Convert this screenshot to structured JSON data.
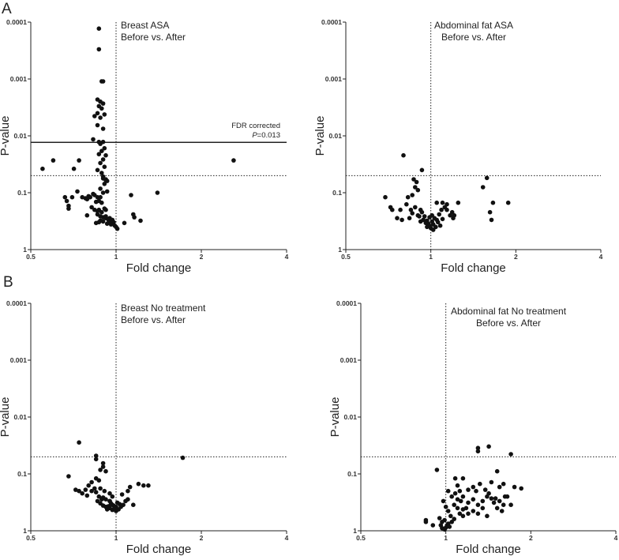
{
  "panel_labels": [
    "A",
    "B"
  ],
  "chart_data": [
    {
      "type": "scatter",
      "panel": "A",
      "annotation": [
        "Breast ASA",
        "Before vs. After"
      ],
      "xlabel": "Fold change",
      "ylabel": "P-value",
      "xscale": "log2",
      "yscale": "log10-inverted",
      "xlim": [
        0.5,
        4
      ],
      "ylim": [
        1,
        0.0001
      ],
      "xticks": [
        0.5,
        1,
        2,
        4
      ],
      "xtick_labels": [
        "0.5",
        "1",
        "2",
        "4"
      ],
      "yticks": [
        0.0001,
        0.001,
        0.01,
        0.1,
        1
      ],
      "ytick_labels": [
        "0.0001",
        "0.001",
        "0.01",
        "0.1",
        "1"
      ],
      "vline": 1,
      "hline_dotted": 0.05,
      "fdr_line": {
        "p": 0.013,
        "label_1": "FDR corrected",
        "label_p": "P",
        "label_2": "=0.013"
      },
      "points": [
        [
          0.87,
          0.00013
        ],
        [
          0.87,
          0.0003
        ],
        [
          0.89,
          0.0011
        ],
        [
          0.9,
          0.0011
        ],
        [
          0.86,
          0.0023
        ],
        [
          0.88,
          0.0025
        ],
        [
          0.9,
          0.0027
        ],
        [
          0.87,
          0.003
        ],
        [
          0.89,
          0.0033
        ],
        [
          0.86,
          0.004
        ],
        [
          0.91,
          0.0042
        ],
        [
          0.84,
          0.0045
        ],
        [
          0.88,
          0.0048
        ],
        [
          0.86,
          0.0065
        ],
        [
          0.9,
          0.0075
        ],
        [
          0.83,
          0.0115
        ],
        [
          0.87,
          0.0128
        ],
        [
          0.9,
          0.0128
        ],
        [
          0.88,
          0.0138
        ],
        [
          0.89,
          0.0185
        ],
        [
          0.91,
          0.0165
        ],
        [
          0.92,
          0.022
        ],
        [
          0.87,
          0.021
        ],
        [
          0.9,
          0.026
        ],
        [
          0.88,
          0.03
        ],
        [
          0.91,
          0.035
        ],
        [
          0.86,
          0.04
        ],
        [
          0.89,
          0.045
        ],
        [
          0.9,
          0.052
        ],
        [
          0.92,
          0.06
        ],
        [
          0.93,
          0.062
        ],
        [
          0.91,
          0.07
        ],
        [
          0.55,
          0.038
        ],
        [
          0.6,
          0.027
        ],
        [
          0.71,
          0.038
        ],
        [
          0.74,
          0.027
        ],
        [
          0.9,
          0.056
        ],
        [
          0.92,
          0.058
        ],
        [
          0.88,
          0.085
        ],
        [
          0.93,
          0.095
        ],
        [
          0.78,
          0.125
        ],
        [
          0.79,
          0.13
        ],
        [
          0.8,
          0.115
        ],
        [
          0.81,
          0.12
        ],
        [
          0.83,
          0.105
        ],
        [
          0.84,
          0.11
        ],
        [
          0.85,
          0.145
        ],
        [
          0.86,
          0.12
        ],
        [
          0.87,
          0.14
        ],
        [
          0.88,
          0.12
        ],
        [
          0.89,
          0.15
        ],
        [
          0.9,
          0.1
        ],
        [
          0.66,
          0.12
        ],
        [
          0.67,
          0.14
        ],
        [
          0.68,
          0.17
        ],
        [
          0.68,
          0.19
        ],
        [
          0.7,
          0.12
        ],
        [
          0.73,
          0.095
        ],
        [
          0.76,
          0.12
        ],
        [
          0.82,
          0.18
        ],
        [
          0.84,
          0.2
        ],
        [
          0.86,
          0.21
        ],
        [
          0.87,
          0.2
        ],
        [
          0.89,
          0.22
        ],
        [
          0.91,
          0.19
        ],
        [
          0.92,
          0.2
        ],
        [
          0.86,
          0.24
        ],
        [
          0.88,
          0.26
        ],
        [
          0.9,
          0.27
        ],
        [
          0.92,
          0.28
        ],
        [
          0.94,
          0.3
        ],
        [
          0.95,
          0.28
        ],
        [
          0.97,
          0.3
        ],
        [
          0.98,
          0.33
        ],
        [
          1.0,
          0.4
        ],
        [
          1.01,
          0.43
        ],
        [
          0.96,
          0.36
        ],
        [
          0.93,
          0.35
        ],
        [
          0.9,
          0.32
        ],
        [
          0.88,
          0.31
        ],
        [
          0.85,
          0.34
        ],
        [
          0.87,
          0.33
        ],
        [
          0.99,
          0.38
        ],
        [
          1.07,
          0.34
        ],
        [
          1.13,
          0.11
        ],
        [
          1.15,
          0.24
        ],
        [
          1.16,
          0.27
        ],
        [
          1.22,
          0.31
        ],
        [
          1.4,
          0.1
        ],
        [
          0.79,
          0.25
        ],
        [
          0.92,
          0.26
        ],
        [
          0.95,
          0.32
        ],
        [
          2.6,
          0.027
        ]
      ]
    },
    {
      "type": "scatter",
      "panel": "A",
      "annotation": [
        "Abdominal fat ASA",
        "Before vs. After"
      ],
      "xlabel": "Fold change",
      "ylabel": "P-value",
      "xscale": "log2",
      "yscale": "log10-inverted",
      "xlim": [
        0.5,
        4
      ],
      "ylim": [
        1,
        0.0001
      ],
      "xticks": [
        0.5,
        1,
        2,
        4
      ],
      "xtick_labels": [
        "0.5",
        "1",
        "2",
        "4"
      ],
      "yticks": [
        0.0001,
        0.001,
        0.01,
        0.1,
        1
      ],
      "ytick_labels": [
        "0.0001",
        "0.001",
        "0.01",
        "0.1",
        "1"
      ],
      "vline": 1,
      "hline_dotted": 0.05,
      "points": [
        [
          0.8,
          0.022
        ],
        [
          0.93,
          0.04
        ],
        [
          0.87,
          0.058
        ],
        [
          0.89,
          0.065
        ],
        [
          0.88,
          0.08
        ],
        [
          0.9,
          0.09
        ],
        [
          0.86,
          0.11
        ],
        [
          0.69,
          0.12
        ],
        [
          0.72,
          0.18
        ],
        [
          0.73,
          0.2
        ],
        [
          0.76,
          0.28
        ],
        [
          0.79,
          0.3
        ],
        [
          0.82,
          0.16
        ],
        [
          0.83,
          0.12
        ],
        [
          0.85,
          0.2
        ],
        [
          0.86,
          0.23
        ],
        [
          0.88,
          0.18
        ],
        [
          0.9,
          0.25
        ],
        [
          0.92,
          0.2
        ],
        [
          0.93,
          0.22
        ],
        [
          0.95,
          0.26
        ],
        [
          0.97,
          0.31
        ],
        [
          0.98,
          0.35
        ],
        [
          1.0,
          0.42
        ],
        [
          1.02,
          0.36
        ],
        [
          1.04,
          0.4
        ],
        [
          1.05,
          0.3
        ],
        [
          1.06,
          0.33
        ],
        [
          1.08,
          0.38
        ],
        [
          1.1,
          0.29
        ],
        [
          0.94,
          0.3
        ],
        [
          0.96,
          0.34
        ],
        [
          0.99,
          0.38
        ],
        [
          1.01,
          0.32
        ],
        [
          1.03,
          0.28
        ],
        [
          1.07,
          0.24
        ],
        [
          1.09,
          0.2
        ],
        [
          1.12,
          0.18
        ],
        [
          1.14,
          0.2
        ],
        [
          1.17,
          0.25
        ],
        [
          1.19,
          0.22
        ],
        [
          1.21,
          0.25
        ],
        [
          1.05,
          0.15
        ],
        [
          1.1,
          0.15
        ],
        [
          1.14,
          0.16
        ],
        [
          1.2,
          0.28
        ],
        [
          1.25,
          0.15
        ],
        [
          0.78,
          0.2
        ],
        [
          0.84,
          0.28
        ],
        [
          0.91,
          0.26
        ],
        [
          0.99,
          0.27
        ],
        [
          1.01,
          0.25
        ],
        [
          1.02,
          0.45
        ],
        [
          1.04,
          0.4
        ],
        [
          1.53,
          0.08
        ],
        [
          1.58,
          0.055
        ],
        [
          1.62,
          0.22
        ],
        [
          1.64,
          0.3
        ],
        [
          1.66,
          0.15
        ],
        [
          1.88,
          0.15
        ],
        [
          0.92,
          0.32
        ],
        [
          0.97,
          0.4
        ]
      ]
    },
    {
      "type": "scatter",
      "panel": "B",
      "annotation": [
        "Breast No treatment",
        "Before vs. After"
      ],
      "xlabel": "Fold change",
      "ylabel": "P-value",
      "xscale": "log2",
      "yscale": "log10-inverted",
      "xlim": [
        0.5,
        4
      ],
      "ylim": [
        1,
        0.0001
      ],
      "xticks": [
        0.5,
        1,
        2,
        4
      ],
      "xtick_labels": [
        "0.5",
        "1",
        "2",
        "4"
      ],
      "yticks": [
        0.0001,
        0.001,
        0.01,
        0.1,
        1
      ],
      "ytick_labels": [
        "0.0001",
        "0.001",
        "0.01",
        "0.1",
        "1"
      ],
      "vline": 1,
      "hline_dotted": 0.05,
      "points": [
        [
          0.74,
          0.028
        ],
        [
          0.85,
          0.048
        ],
        [
          0.85,
          0.055
        ],
        [
          0.9,
          0.065
        ],
        [
          0.9,
          0.075
        ],
        [
          0.88,
          0.085
        ],
        [
          0.92,
          0.09
        ],
        [
          0.85,
          0.12
        ],
        [
          0.82,
          0.14
        ],
        [
          0.87,
          0.13
        ],
        [
          0.68,
          0.11
        ],
        [
          0.72,
          0.19
        ],
        [
          0.74,
          0.2
        ],
        [
          0.76,
          0.22
        ],
        [
          0.78,
          0.19
        ],
        [
          0.79,
          0.24
        ],
        [
          0.82,
          0.2
        ],
        [
          0.85,
          0.21
        ],
        [
          0.87,
          0.25
        ],
        [
          0.9,
          0.26
        ],
        [
          0.92,
          0.28
        ],
        [
          0.95,
          0.3
        ],
        [
          0.97,
          0.35
        ],
        [
          0.99,
          0.4
        ],
        [
          1.0,
          0.45
        ],
        [
          1.02,
          0.42
        ],
        [
          1.04,
          0.38
        ],
        [
          1.06,
          0.35
        ],
        [
          1.08,
          0.3
        ],
        [
          0.86,
          0.3
        ],
        [
          0.88,
          0.33
        ],
        [
          0.9,
          0.36
        ],
        [
          0.92,
          0.38
        ],
        [
          0.94,
          0.37
        ],
        [
          0.96,
          0.33
        ],
        [
          0.98,
          0.36
        ],
        [
          1.01,
          0.32
        ],
        [
          1.03,
          0.34
        ],
        [
          0.93,
          0.42
        ],
        [
          0.95,
          0.4
        ],
        [
          0.97,
          0.43
        ],
        [
          1.05,
          0.23
        ],
        [
          1.1,
          0.2
        ],
        [
          1.12,
          0.17
        ],
        [
          1.15,
          0.35
        ],
        [
          1.2,
          0.15
        ],
        [
          1.25,
          0.16
        ],
        [
          1.3,
          0.16
        ],
        [
          0.8,
          0.16
        ],
        [
          0.84,
          0.18
        ],
        [
          0.88,
          0.18
        ],
        [
          0.91,
          0.2
        ],
        [
          0.95,
          0.22
        ],
        [
          0.97,
          0.25
        ],
        [
          0.89,
          0.28
        ],
        [
          1.0,
          0.38
        ],
        [
          1.1,
          0.28
        ],
        [
          1.72,
          0.052
        ],
        [
          0.95,
          0.3
        ],
        [
          0.99,
          0.4
        ]
      ]
    },
    {
      "type": "scatter",
      "panel": "B",
      "annotation": [
        "Abdominal fat No treatment",
        "Before vs. After"
      ],
      "xlabel": "Fold change",
      "ylabel": "P-value",
      "xscale": "log2",
      "yscale": "log10-inverted",
      "xlim": [
        0.5,
        4
      ],
      "ylim": [
        1,
        0.0001
      ],
      "xticks": [
        0.5,
        1,
        2,
        4
      ],
      "xtick_labels": [
        "0.5",
        "1",
        "2",
        "4"
      ],
      "yticks": [
        0.0001,
        0.001,
        0.01,
        0.1,
        1
      ],
      "ytick_labels": [
        "0.0001",
        "0.001",
        "0.01",
        "0.1",
        "1"
      ],
      "vline": 1,
      "hline_dotted": 0.05,
      "points": [
        [
          1.3,
          0.035
        ],
        [
          1.3,
          0.04
        ],
        [
          1.42,
          0.033
        ],
        [
          1.7,
          0.045
        ],
        [
          0.93,
          0.085
        ],
        [
          1.08,
          0.12
        ],
        [
          1.15,
          0.12
        ],
        [
          1.1,
          0.16
        ],
        [
          1.12,
          0.2
        ],
        [
          1.2,
          0.19
        ],
        [
          1.25,
          0.17
        ],
        [
          1.28,
          0.2
        ],
        [
          1.32,
          0.15
        ],
        [
          1.38,
          0.19
        ],
        [
          1.45,
          0.14
        ],
        [
          1.52,
          0.09
        ],
        [
          1.55,
          0.17
        ],
        [
          1.6,
          0.15
        ],
        [
          1.75,
          0.17
        ],
        [
          1.85,
          0.18
        ],
        [
          1.02,
          0.2
        ],
        [
          1.05,
          0.25
        ],
        [
          1.08,
          0.22
        ],
        [
          1.1,
          0.28
        ],
        [
          1.15,
          0.25
        ],
        [
          1.2,
          0.32
        ],
        [
          1.25,
          0.28
        ],
        [
          1.3,
          0.35
        ],
        [
          1.35,
          0.3
        ],
        [
          1.4,
          0.25
        ],
        [
          1.42,
          0.22
        ],
        [
          1.45,
          0.27
        ],
        [
          1.5,
          0.27
        ],
        [
          1.55,
          0.3
        ],
        [
          1.6,
          0.35
        ],
        [
          1.62,
          0.25
        ],
        [
          1.65,
          0.25
        ],
        [
          1.7,
          0.35
        ],
        [
          0.98,
          0.3
        ],
        [
          1.0,
          0.38
        ],
        [
          1.02,
          0.45
        ],
        [
          1.04,
          0.55
        ],
        [
          1.05,
          0.7
        ],
        [
          1.07,
          0.62
        ],
        [
          0.99,
          0.65
        ],
        [
          0.97,
          0.7
        ],
        [
          0.95,
          0.6
        ],
        [
          0.96,
          0.8
        ],
        [
          0.97,
          0.9
        ],
        [
          0.99,
          0.95
        ],
        [
          1.0,
          0.88
        ],
        [
          1.01,
          0.8
        ],
        [
          1.02,
          0.75
        ],
        [
          1.03,
          0.85
        ],
        [
          0.9,
          0.8
        ],
        [
          0.85,
          0.65
        ],
        [
          0.85,
          0.7
        ],
        [
          1.12,
          0.5
        ],
        [
          1.15,
          0.55
        ],
        [
          1.2,
          0.5
        ],
        [
          1.25,
          0.45
        ],
        [
          1.1,
          0.4
        ],
        [
          1.15,
          0.42
        ],
        [
          1.3,
          0.5
        ],
        [
          1.35,
          0.4
        ],
        [
          1.4,
          0.55
        ],
        [
          1.48,
          0.32
        ],
        [
          1.52,
          0.4
        ],
        [
          1.58,
          0.45
        ],
        [
          1.07,
          0.35
        ],
        [
          1.13,
          0.3
        ],
        [
          1.18,
          0.4
        ]
      ]
    }
  ]
}
